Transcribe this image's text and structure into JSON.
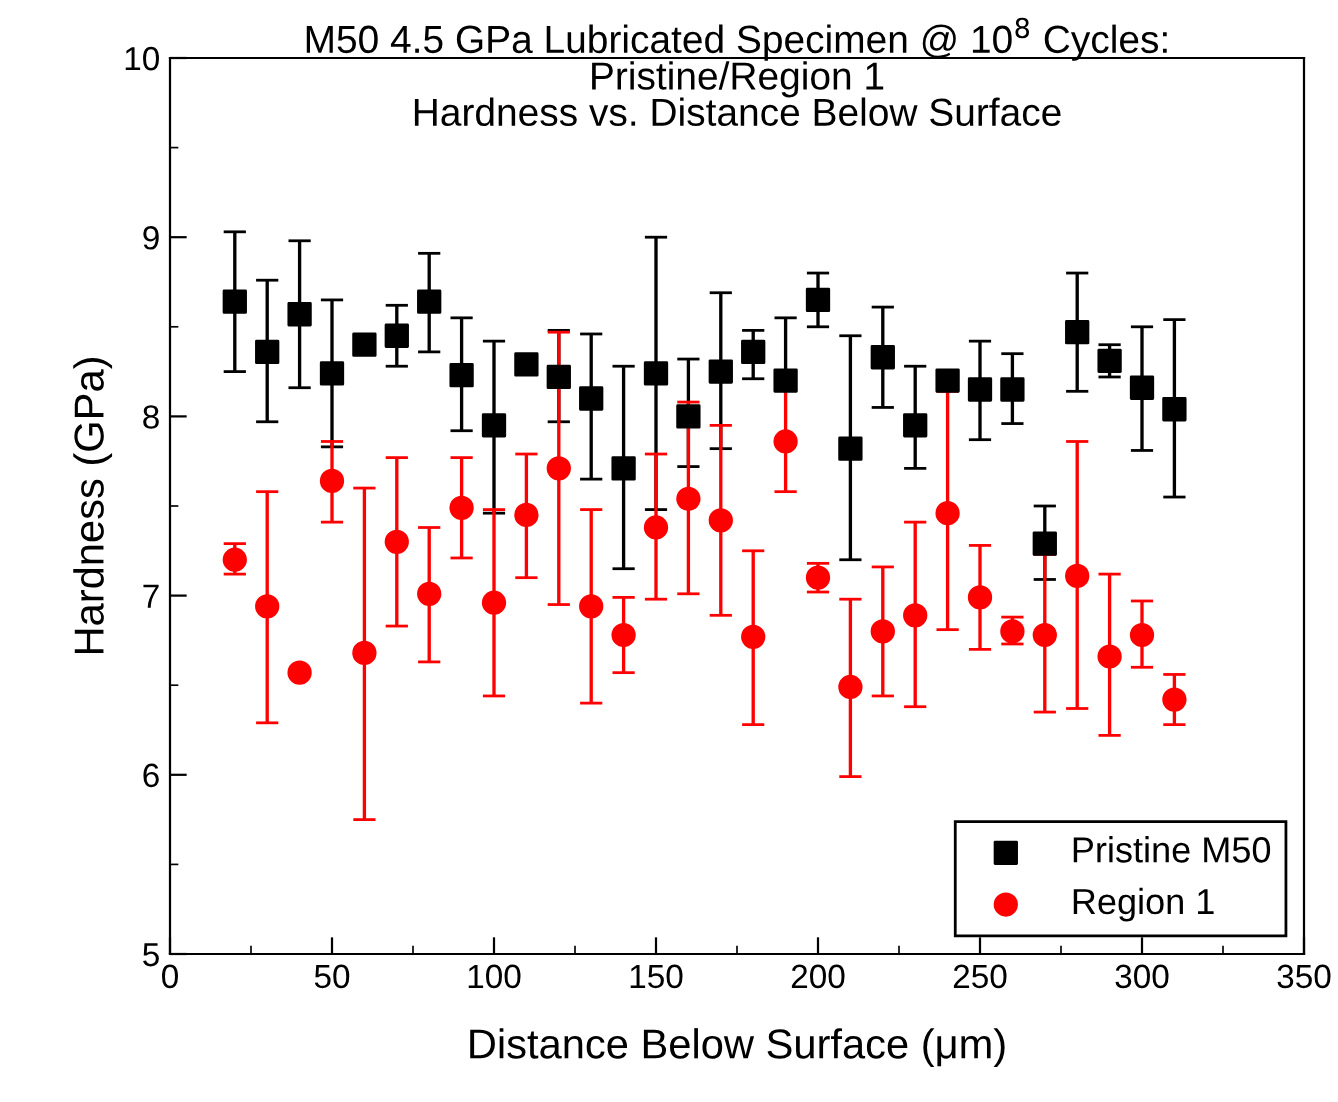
{
  "chart_data": {
    "type": "scatter",
    "title": "M50 4.5 GPa Lubricated Specimen @ 10$^{8}$ Cycles:\nPristine/Region 1\nHardness vs. Distance Below Surface",
    "xlabel": "Distance Below Surface (μm)",
    "ylabel": "Hardness (GPa)",
    "x": [
      20,
      30,
      40,
      50,
      60,
      70,
      80,
      90,
      100,
      110,
      120,
      130,
      140,
      150,
      160,
      170,
      180,
      190,
      200,
      210,
      220,
      230,
      240,
      250,
      260,
      270,
      280,
      290,
      300,
      310
    ],
    "series": [
      {
        "name": "Pristine M50",
        "color": "#000000",
        "marker": "square",
        "values": [
          8.64,
          8.36,
          8.57,
          8.24,
          8.4,
          8.45,
          8.64,
          8.23,
          7.95,
          8.29,
          8.22,
          8.1,
          7.71,
          8.24,
          8.0,
          8.25,
          8.36,
          8.2,
          8.65,
          7.82,
          8.33,
          7.95,
          8.2,
          8.15,
          8.15,
          7.29,
          8.47,
          8.31,
          8.16,
          8.04
        ],
        "errors": [
          [
            8.25,
            9.03
          ],
          [
            7.97,
            8.76
          ],
          [
            8.16,
            8.98
          ],
          [
            7.83,
            8.65
          ],
          null,
          [
            8.28,
            8.62
          ],
          [
            8.36,
            8.91
          ],
          [
            7.92,
            8.55
          ],
          [
            7.46,
            8.42
          ],
          null,
          [
            7.97,
            8.48
          ],
          [
            7.65,
            8.46
          ],
          [
            7.15,
            8.28
          ],
          [
            7.48,
            9.0
          ],
          [
            7.72,
            8.32
          ],
          [
            7.82,
            8.69
          ],
          [
            8.21,
            8.48
          ],
          [
            8.2,
            8.55
          ],
          [
            8.5,
            8.8
          ],
          [
            7.2,
            8.45
          ],
          [
            8.05,
            8.61
          ],
          [
            7.71,
            8.28
          ],
          [
            8.16,
            8.25
          ],
          [
            7.87,
            8.42
          ],
          [
            7.96,
            8.35
          ],
          [
            7.09,
            7.5
          ],
          [
            8.14,
            8.8
          ],
          [
            8.22,
            8.4
          ],
          [
            7.81,
            8.5
          ],
          [
            7.55,
            8.54
          ]
        ]
      },
      {
        "name": "Region 1",
        "color": "#ff0000",
        "marker": "circle",
        "values": [
          7.2,
          6.94,
          6.57,
          7.64,
          6.68,
          7.3,
          7.01,
          7.49,
          6.96,
          7.45,
          7.71,
          6.94,
          6.78,
          7.38,
          7.54,
          7.42,
          6.77,
          7.86,
          7.1,
          6.49,
          6.8,
          6.89,
          7.46,
          6.99,
          6.8,
          6.78,
          7.11,
          6.66,
          6.78,
          6.42
        ],
        "errors": [
          [
            7.12,
            7.29
          ],
          [
            6.29,
            7.58
          ],
          null,
          [
            7.41,
            7.86
          ],
          [
            5.75,
            7.6
          ],
          [
            6.83,
            7.77
          ],
          [
            6.63,
            7.38
          ],
          [
            7.21,
            7.77
          ],
          [
            6.44,
            7.48
          ],
          [
            7.1,
            7.79
          ],
          [
            6.95,
            8.47
          ],
          [
            6.4,
            7.48
          ],
          [
            6.57,
            6.99
          ],
          [
            6.98,
            7.79
          ],
          [
            7.01,
            8.08
          ],
          [
            6.89,
            7.95
          ],
          [
            6.28,
            7.25
          ],
          [
            7.58,
            8.15
          ],
          [
            7.02,
            7.18
          ],
          [
            5.99,
            6.98
          ],
          [
            6.44,
            7.16
          ],
          [
            6.38,
            7.41
          ],
          [
            6.81,
            8.14
          ],
          [
            6.7,
            7.28
          ],
          [
            6.73,
            6.88
          ],
          [
            6.35,
            7.23
          ],
          [
            6.37,
            7.86
          ],
          [
            6.22,
            7.12
          ],
          [
            6.6,
            6.97
          ],
          [
            6.28,
            6.56
          ]
        ]
      }
    ],
    "xlim": [
      0,
      350
    ],
    "xticks": [
      0,
      50,
      100,
      150,
      200,
      250,
      300,
      350
    ],
    "ylim": [
      5,
      10
    ],
    "yticks": [
      5,
      6,
      7,
      8,
      9,
      10
    ],
    "grid": false,
    "legend": "bottom right"
  }
}
